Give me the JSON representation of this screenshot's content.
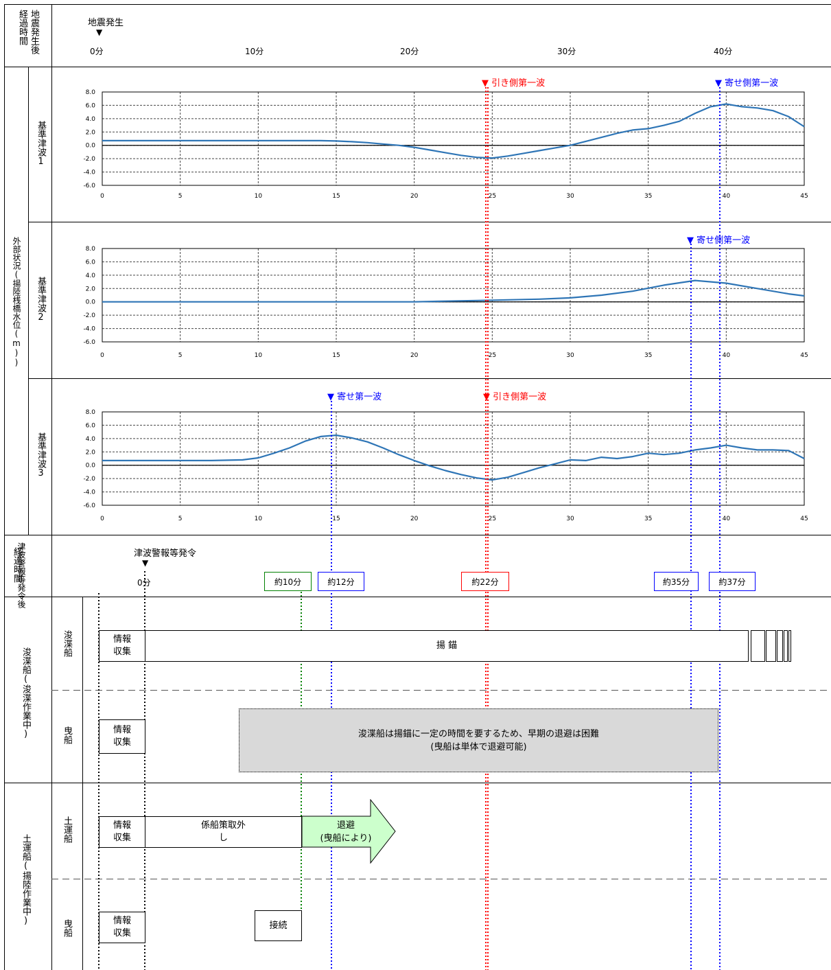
{
  "header": {
    "elapsed_label": "経過時間",
    "after_quake_label": "地震発生後",
    "quake_marker": "地震発生",
    "marker_glyph": "▼",
    "ticks": [
      "0分",
      "10分",
      "20分",
      "30分",
      "40分"
    ]
  },
  "section_label": "外部状況(揚陸桟橋水位(m))",
  "chart_data": [
    {
      "type": "line",
      "name": "基準津波1",
      "row_label": "基準津波1",
      "x": [
        0,
        5,
        10,
        12,
        14,
        15,
        16,
        17,
        18,
        19,
        20,
        21,
        22,
        23,
        24,
        25,
        26,
        27,
        28,
        29,
        30,
        31,
        32,
        33,
        34,
        35,
        36,
        37,
        38,
        39,
        40,
        41,
        42,
        43,
        44,
        45
      ],
      "y": [
        0.7,
        0.7,
        0.7,
        0.7,
        0.7,
        0.65,
        0.55,
        0.4,
        0.2,
        0,
        -0.3,
        -0.7,
        -1.1,
        -1.5,
        -1.8,
        -1.9,
        -1.6,
        -1.2,
        -0.8,
        -0.4,
        0,
        0.6,
        1.2,
        1.8,
        2.3,
        2.5,
        3.0,
        3.6,
        4.8,
        5.8,
        6.2,
        5.8,
        5.6,
        5.2,
        4.3,
        2.8
      ],
      "xlim": [
        0,
        45
      ],
      "ylim": [
        -6,
        8
      ],
      "xticks": [
        0,
        5,
        10,
        15,
        20,
        25,
        30,
        35,
        40,
        45
      ],
      "yticks": [
        "8.0",
        "6.0",
        "4.0",
        "2.0",
        "0.0",
        "-2.0",
        "-4.0",
        "-6.0"
      ],
      "color": "#2e75b6"
    },
    {
      "type": "line",
      "name": "基準津波2",
      "row_label": "基準津波2",
      "x": [
        0,
        10,
        20,
        22,
        24,
        26,
        28,
        30,
        32,
        34,
        36,
        38,
        40,
        42,
        44,
        45
      ],
      "y": [
        0,
        0,
        0,
        0.1,
        0.2,
        0.3,
        0.4,
        0.6,
        1.0,
        1.6,
        2.5,
        3.2,
        2.8,
        2.0,
        1.2,
        0.9
      ],
      "xlim": [
        0,
        45
      ],
      "ylim": [
        -6,
        8
      ],
      "xticks": [
        0,
        5,
        10,
        15,
        20,
        25,
        30,
        35,
        40,
        45
      ],
      "yticks": [
        "8.0",
        "6.0",
        "4.0",
        "2.0",
        "0.0",
        "-2.0",
        "-4.0",
        "-6.0"
      ],
      "color": "#2e75b6"
    },
    {
      "type": "line",
      "name": "基準津波3",
      "row_label": "基準津波3",
      "x": [
        0,
        5,
        7,
        9,
        10,
        11,
        12,
        13,
        14,
        15,
        16,
        17,
        18,
        19,
        20,
        21,
        22,
        23,
        24,
        25,
        26,
        27,
        28,
        29,
        30,
        31,
        32,
        33,
        34,
        35,
        36,
        37,
        38,
        39,
        40,
        41,
        42,
        43,
        44,
        45
      ],
      "y": [
        0.7,
        0.7,
        0.7,
        0.8,
        1.1,
        1.8,
        2.6,
        3.6,
        4.3,
        4.5,
        4.1,
        3.5,
        2.6,
        1.6,
        0.7,
        -0.1,
        -0.8,
        -1.4,
        -1.9,
        -2.2,
        -1.8,
        -1.1,
        -0.4,
        0.2,
        0.8,
        0.7,
        1.2,
        1.0,
        1.3,
        1.8,
        1.6,
        1.8,
        2.3,
        2.6,
        3.0,
        2.6,
        2.3,
        2.3,
        2.2,
        1.0
      ],
      "xlim": [
        0,
        45
      ],
      "ylim": [
        -6,
        8
      ],
      "xticks": [
        0,
        5,
        10,
        15,
        20,
        25,
        30,
        35,
        40,
        45
      ],
      "yticks": [
        "8.0",
        "6.0",
        "4.0",
        "2.0",
        "0.0",
        "-2.0",
        "-4.0",
        "-6.0"
      ],
      "color": "#2e75b6"
    }
  ],
  "annotations": {
    "hiki_first": "▼ 引き側第一波",
    "yose_first": "▼ 寄せ側第一波",
    "yose_first_short": "▼ 寄せ第一波",
    "red": "#ff0000",
    "blue": "#0000ff",
    "green": "#008000"
  },
  "warning": {
    "elapsed_label": "経過時間",
    "after_label": "津波警報等発令後",
    "marker": "津波警報等発令",
    "zero": "0分",
    "times": [
      "約10分",
      "約12分",
      "約22分",
      "約35分",
      "約37分"
    ]
  },
  "groups": {
    "dredger_group": "浚渫船(浚渫作業中)",
    "barge_group": "土運船(揚陸作業中)",
    "dredger": "浚渫船",
    "tug": "曳船",
    "barge": "土運船"
  },
  "tasks": {
    "info": "情報収集",
    "anchor": "揚 錨",
    "note_line1": "浚渫船は揚錨に一定の時間を要するため、早期の退避は困難",
    "note_line2": "(曳船は単体で退避可能)",
    "mooring": "係船策取外し",
    "evacuate": "退避",
    "evacuate_sub": "(曳船により)",
    "connect": "接続"
  }
}
